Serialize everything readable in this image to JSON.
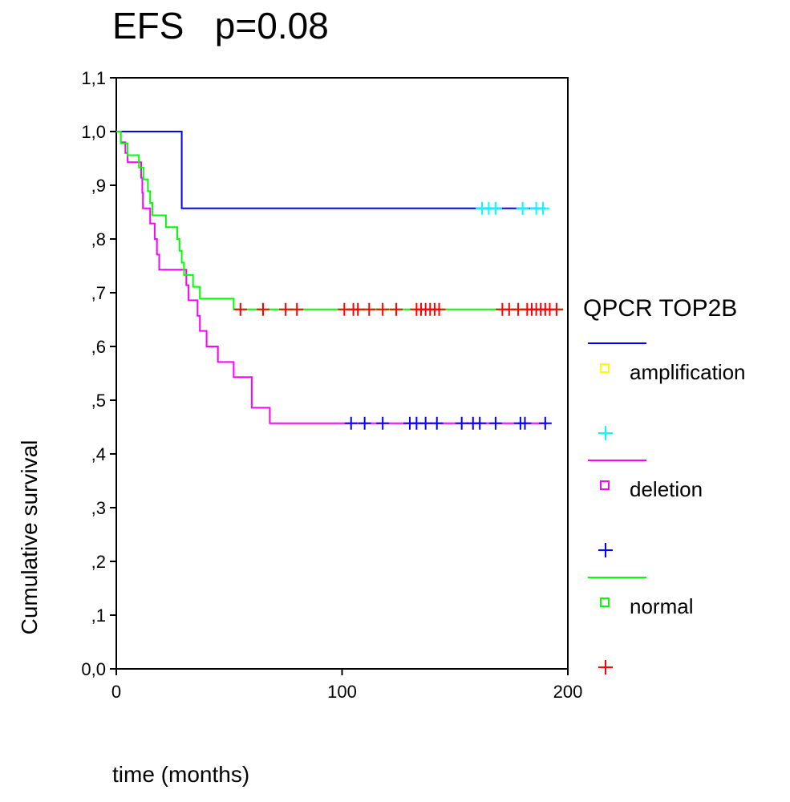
{
  "chart_data": {
    "type": "line",
    "title": "EFS   p=0.08",
    "xlabel": "time (months)",
    "ylabel": "Cumulative survival",
    "xlim": [
      0,
      200
    ],
    "ylim": [
      0,
      1.1
    ],
    "x_ticks": [
      0,
      100,
      200
    ],
    "x_tick_labels": [
      "0",
      "100",
      "200"
    ],
    "y_ticks": [
      0,
      0.1,
      0.2,
      0.3,
      0.4,
      0.5,
      0.6,
      0.7,
      0.8,
      0.9,
      1.0,
      1.1
    ],
    "y_tick_labels": [
      "0,0",
      ",1",
      ",2",
      ",3",
      ",4",
      ",5",
      ",6",
      ",7",
      ",8",
      ",9",
      "1,0",
      "1,1"
    ],
    "legend_title": "QPCR TOP2B",
    "legend_position": "right",
    "series": [
      {
        "name": "amplification",
        "color": "#0000ff",
        "censor_color": "#00ffff",
        "marker_color": "#ffff00",
        "steps": [
          [
            0,
            1.0
          ],
          [
            29,
            1.0
          ],
          [
            29,
            0.857
          ],
          [
            190,
            0.857
          ]
        ],
        "censored": [
          [
            162,
            0.857
          ],
          [
            165,
            0.857
          ],
          [
            168,
            0.857
          ],
          [
            180,
            0.857
          ],
          [
            186,
            0.857
          ],
          [
            189,
            0.857
          ]
        ]
      },
      {
        "name": "deletion",
        "color": "#ff00ff",
        "censor_color": "#0000ff",
        "marker_color": "#ff00ff",
        "steps": [
          [
            0,
            1.0
          ],
          [
            2,
            1.0
          ],
          [
            2,
            0.98
          ],
          [
            4,
            0.98
          ],
          [
            4,
            0.96
          ],
          [
            5,
            0.96
          ],
          [
            5,
            0.943
          ],
          [
            11,
            0.943
          ],
          [
            11,
            0.914
          ],
          [
            11.5,
            0.914
          ],
          [
            11.5,
            0.886
          ],
          [
            11.8,
            0.886
          ],
          [
            11.8,
            0.857
          ],
          [
            15,
            0.857
          ],
          [
            15,
            0.829
          ],
          [
            17,
            0.829
          ],
          [
            17,
            0.8
          ],
          [
            18,
            0.8
          ],
          [
            18,
            0.771
          ],
          [
            19,
            0.771
          ],
          [
            19,
            0.743
          ],
          [
            31,
            0.743
          ],
          [
            31,
            0.714
          ],
          [
            32,
            0.714
          ],
          [
            32,
            0.686
          ],
          [
            36,
            0.686
          ],
          [
            36,
            0.657
          ],
          [
            37,
            0.657
          ],
          [
            37,
            0.629
          ],
          [
            40,
            0.629
          ],
          [
            40,
            0.6
          ],
          [
            45,
            0.6
          ],
          [
            45,
            0.571
          ],
          [
            52,
            0.571
          ],
          [
            52,
            0.543
          ],
          [
            60,
            0.543
          ],
          [
            60,
            0.486
          ],
          [
            68,
            0.486
          ],
          [
            68,
            0.457
          ],
          [
            191,
            0.457
          ]
        ],
        "censored": [
          [
            104,
            0.457
          ],
          [
            110,
            0.457
          ],
          [
            118,
            0.457
          ],
          [
            130,
            0.457
          ],
          [
            133,
            0.457
          ],
          [
            137,
            0.457
          ],
          [
            142,
            0.457
          ],
          [
            153,
            0.457
          ],
          [
            158,
            0.457
          ],
          [
            161,
            0.457
          ],
          [
            168,
            0.457
          ],
          [
            179,
            0.457
          ],
          [
            181,
            0.457
          ],
          [
            190,
            0.457
          ]
        ]
      },
      {
        "name": "normal",
        "color": "#00ff00",
        "censor_color": "#ff0000",
        "marker_color": "#00ff00",
        "steps": [
          [
            0,
            1.0
          ],
          [
            2,
            1.0
          ],
          [
            2,
            0.978
          ],
          [
            5,
            0.978
          ],
          [
            5,
            0.956
          ],
          [
            10,
            0.956
          ],
          [
            10,
            0.933
          ],
          [
            12,
            0.933
          ],
          [
            12,
            0.911
          ],
          [
            14,
            0.911
          ],
          [
            14,
            0.889
          ],
          [
            15,
            0.889
          ],
          [
            15,
            0.867
          ],
          [
            16,
            0.867
          ],
          [
            16,
            0.844
          ],
          [
            22,
            0.844
          ],
          [
            22,
            0.822
          ],
          [
            27,
            0.822
          ],
          [
            27,
            0.8
          ],
          [
            28,
            0.8
          ],
          [
            28,
            0.778
          ],
          [
            29,
            0.778
          ],
          [
            29,
            0.756
          ],
          [
            30,
            0.756
          ],
          [
            30,
            0.733
          ],
          [
            34,
            0.733
          ],
          [
            34,
            0.711
          ],
          [
            37,
            0.711
          ],
          [
            37,
            0.689
          ],
          [
            52,
            0.689
          ],
          [
            52,
            0.669
          ],
          [
            198,
            0.669
          ]
        ],
        "censored": [
          [
            55,
            0.669
          ],
          [
            65,
            0.669
          ],
          [
            75,
            0.669
          ],
          [
            80,
            0.669
          ],
          [
            101,
            0.669
          ],
          [
            105,
            0.669
          ],
          [
            107,
            0.669
          ],
          [
            112,
            0.669
          ],
          [
            118,
            0.669
          ],
          [
            124,
            0.669
          ],
          [
            133,
            0.669
          ],
          [
            135,
            0.669
          ],
          [
            137,
            0.669
          ],
          [
            139,
            0.669
          ],
          [
            141,
            0.669
          ],
          [
            143,
            0.669
          ],
          [
            171,
            0.669
          ],
          [
            174,
            0.669
          ],
          [
            178,
            0.669
          ],
          [
            182,
            0.669
          ],
          [
            184,
            0.669
          ],
          [
            186,
            0.669
          ],
          [
            188,
            0.669
          ],
          [
            190,
            0.669
          ],
          [
            192,
            0.669
          ],
          [
            195,
            0.669
          ]
        ]
      }
    ]
  }
}
